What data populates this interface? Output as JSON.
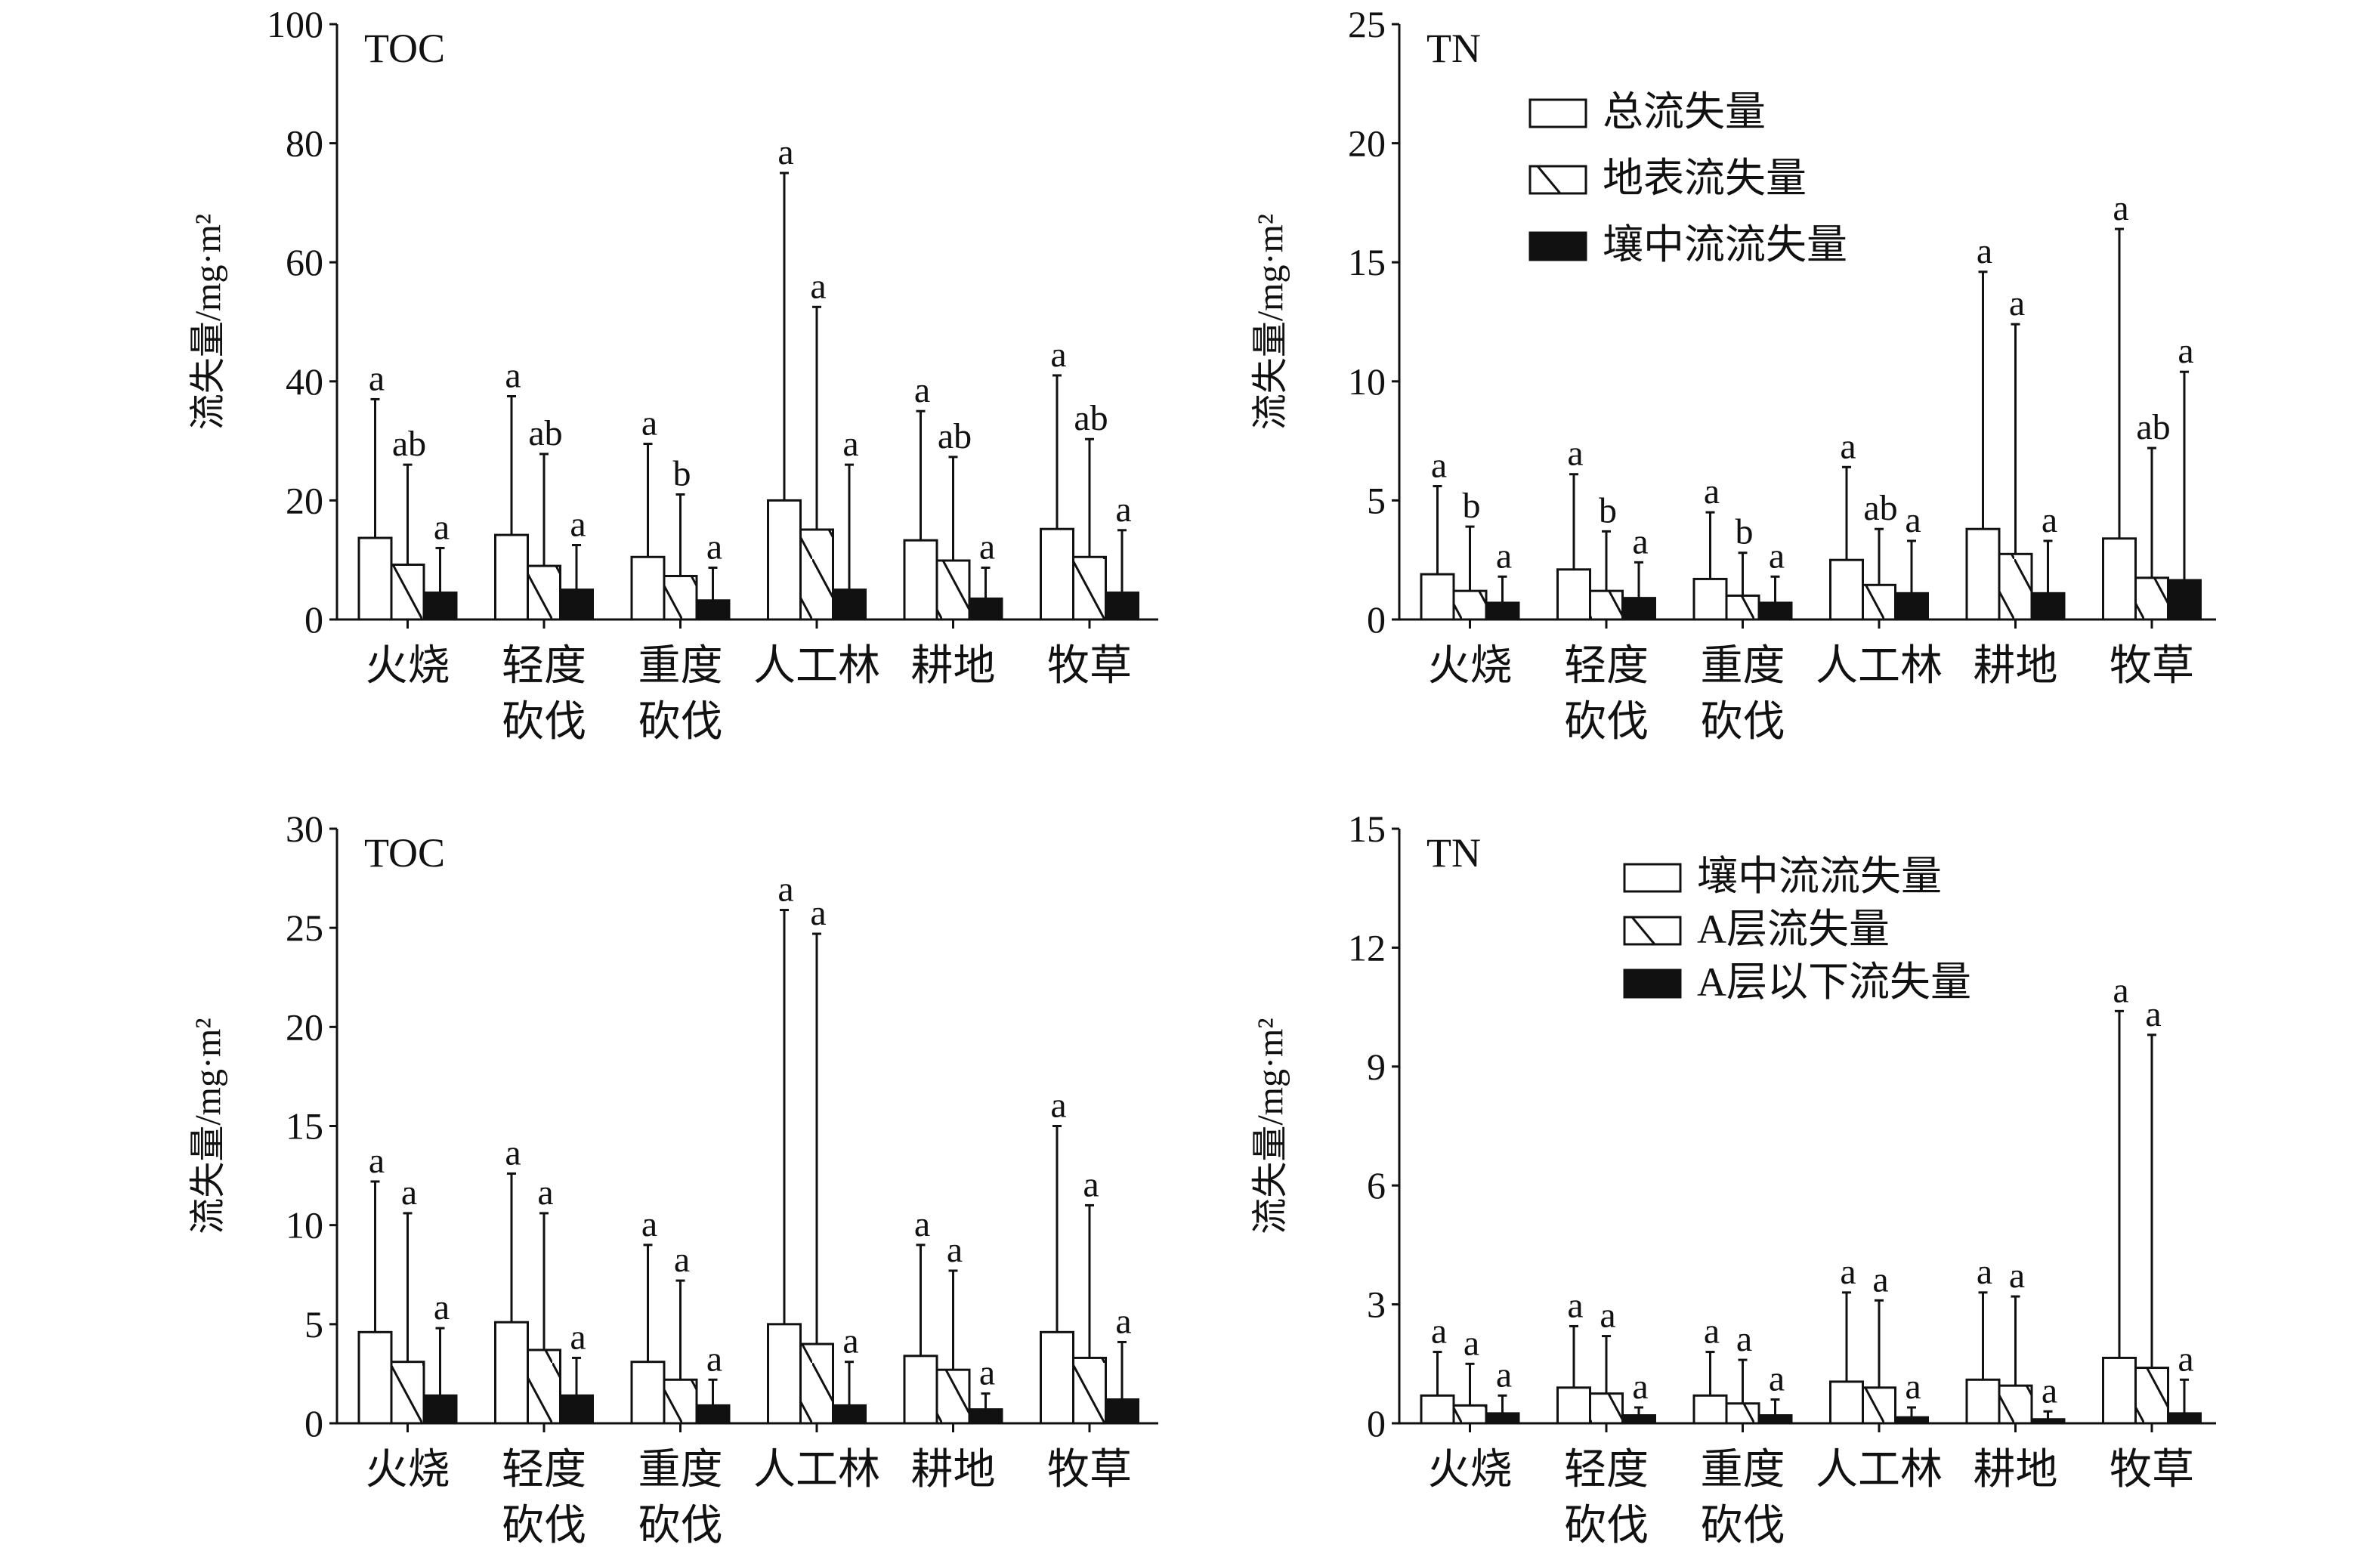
{
  "chart_data": [
    {
      "type": "bar",
      "title": "TOC",
      "ylabel": "流失量/mg·m²",
      "ylim": [
        0,
        100
      ],
      "yticks": [
        0,
        20,
        40,
        60,
        80,
        100
      ],
      "categories": [
        "火烧",
        "轻度\n砍伐",
        "重度\n砍伐",
        "人工林",
        "耕地",
        "牧草"
      ],
      "legend": null,
      "series": [
        {
          "name": "总流失量",
          "fill": "white",
          "values": [
            13.7,
            14.2,
            10.5,
            20.0,
            13.3,
            15.2
          ],
          "error_top": [
            37,
            37.5,
            29.5,
            75,
            35,
            41
          ],
          "letters": [
            "a",
            "a",
            "a",
            "a",
            "a",
            "a"
          ]
        },
        {
          "name": "地表流失量",
          "fill": "hatch",
          "values": [
            9.2,
            9.0,
            7.3,
            15.1,
            9.9,
            10.5
          ],
          "error_top": [
            26,
            27.8,
            21,
            52.5,
            27.3,
            30.3
          ],
          "letters": [
            "ab",
            "ab",
            "b",
            "a",
            "ab",
            "ab"
          ]
        },
        {
          "name": "壤中流流失量",
          "fill": "black",
          "values": [
            4.5,
            5.0,
            3.2,
            5.0,
            3.5,
            4.5
          ],
          "error_top": [
            12,
            12.5,
            8.7,
            26,
            8.7,
            15
          ],
          "letters": [
            "a",
            "a",
            "a",
            "a",
            "a",
            "a"
          ]
        }
      ]
    },
    {
      "type": "bar",
      "title": "TN",
      "ylabel": "流失量/mg·m²",
      "ylim": [
        0,
        25
      ],
      "yticks": [
        0,
        5,
        10,
        15,
        20,
        25
      ],
      "categories": [
        "火烧",
        "轻度\n砍伐",
        "重度\n砍伐",
        "人工林",
        "耕地",
        "牧草"
      ],
      "legend": "top-center",
      "series": [
        {
          "name": "总流失量",
          "fill": "white",
          "values": [
            1.9,
            2.1,
            1.7,
            2.5,
            3.8,
            3.4
          ],
          "error_top": [
            5.6,
            6.1,
            4.5,
            6.4,
            14.6,
            16.4
          ],
          "letters": [
            "a",
            "a",
            "a",
            "a",
            "a",
            "a"
          ]
        },
        {
          "name": "地表流失量",
          "fill": "hatch",
          "values": [
            1.2,
            1.2,
            1.0,
            1.45,
            2.75,
            1.75
          ],
          "error_top": [
            3.9,
            3.7,
            2.8,
            3.8,
            12.4,
            7.2
          ],
          "letters": [
            "b",
            "b",
            "b",
            "ab",
            "a",
            "ab"
          ]
        },
        {
          "name": "壤中流流失量",
          "fill": "black",
          "values": [
            0.7,
            0.9,
            0.7,
            1.1,
            1.1,
            1.65
          ],
          "error_top": [
            1.8,
            2.4,
            1.8,
            3.3,
            3.3,
            10.4
          ],
          "letters": [
            "a",
            "a",
            "a",
            "a",
            "a",
            "a"
          ]
        }
      ]
    },
    {
      "type": "bar",
      "title": "TOC",
      "ylabel": "流失量/mg·m²",
      "ylim": [
        0,
        30
      ],
      "yticks": [
        0,
        5,
        10,
        15,
        20,
        25,
        30
      ],
      "categories": [
        "火烧",
        "轻度\n砍伐",
        "重度\n砍伐",
        "人工林",
        "耕地",
        "牧草"
      ],
      "legend": null,
      "series": [
        {
          "name": "壤中流流失量",
          "fill": "white",
          "values": [
            4.6,
            5.1,
            3.1,
            5.0,
            3.4,
            4.6
          ],
          "error_top": [
            12.2,
            12.6,
            9.0,
            25.9,
            9.0,
            15.0
          ],
          "letters": [
            "a",
            "a",
            "a",
            "a",
            "a",
            "a"
          ]
        },
        {
          "name": "A层流失量",
          "fill": "hatch",
          "values": [
            3.1,
            3.7,
            2.2,
            4.0,
            2.7,
            3.3
          ],
          "error_top": [
            10.6,
            10.6,
            7.2,
            24.7,
            7.7,
            11.0
          ],
          "letters": [
            "a",
            "a",
            "a",
            "a",
            "a",
            "a"
          ]
        },
        {
          "name": "A层以下流失量",
          "fill": "black",
          "values": [
            1.4,
            1.4,
            0.9,
            0.9,
            0.7,
            1.2
          ],
          "error_top": [
            4.8,
            3.3,
            2.2,
            3.1,
            1.5,
            4.1
          ],
          "letters": [
            "a",
            "a",
            "a",
            "a",
            "a",
            "a"
          ]
        }
      ]
    },
    {
      "type": "bar",
      "title": "TN",
      "ylabel": "流失量/mg·m²",
      "ylim": [
        0,
        15
      ],
      "yticks": [
        0,
        3,
        6,
        9,
        12,
        15
      ],
      "categories": [
        "火烧",
        "轻度\n砍伐",
        "重度\n砍伐",
        "人工林",
        "耕地",
        "牧草"
      ],
      "legend": "top-center",
      "series": [
        {
          "name": "壤中流流失量",
          "fill": "white",
          "values": [
            0.7,
            0.9,
            0.7,
            1.05,
            1.1,
            1.65
          ],
          "error_top": [
            1.8,
            2.45,
            1.8,
            3.3,
            3.3,
            10.4
          ],
          "letters": [
            "a",
            "a",
            "a",
            "a",
            "a",
            "a"
          ]
        },
        {
          "name": "A层流失量",
          "fill": "hatch",
          "values": [
            0.45,
            0.75,
            0.5,
            0.9,
            0.95,
            1.4
          ],
          "error_top": [
            1.5,
            2.2,
            1.6,
            3.1,
            3.2,
            9.8
          ],
          "letters": [
            "a",
            "a",
            "a",
            "a",
            "a",
            "a"
          ]
        },
        {
          "name": "A层以下流失量",
          "fill": "black",
          "values": [
            0.25,
            0.2,
            0.2,
            0.15,
            0.1,
            0.25
          ],
          "error_top": [
            0.7,
            0.4,
            0.6,
            0.4,
            0.3,
            1.1
          ],
          "letters": [
            "a",
            "a",
            "a",
            "a",
            "a",
            "a"
          ]
        }
      ]
    }
  ]
}
